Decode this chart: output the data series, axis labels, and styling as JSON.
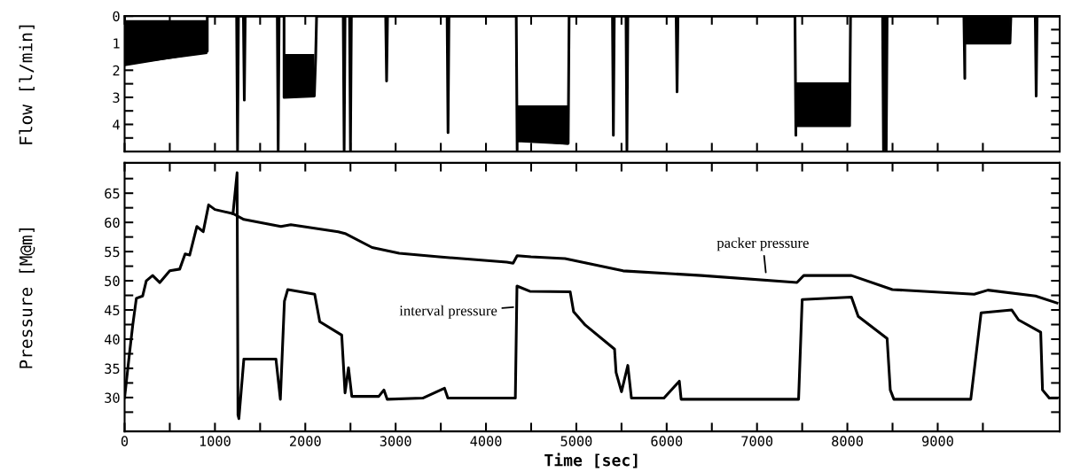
{
  "chart_data": [
    {
      "type": "line",
      "ylabel": "Flow [l/min]",
      "xlim": [
        0,
        10350
      ],
      "ylim": [
        5.0,
        0
      ],
      "tick_labels": "y",
      "xticks": [
        {
          "value": 0,
          "label": null
        },
        {
          "value": 500,
          "label": null
        },
        {
          "value": 1000,
          "label": null
        },
        {
          "value": 1500,
          "label": null
        },
        {
          "value": 2000,
          "label": null
        },
        {
          "value": 2500,
          "label": null
        },
        {
          "value": 3000,
          "label": null
        },
        {
          "value": 3500,
          "label": null
        },
        {
          "value": 4000,
          "label": null
        },
        {
          "value": 4500,
          "label": null
        },
        {
          "value": 5000,
          "label": null
        },
        {
          "value": 5500,
          "label": null
        },
        {
          "value": 6000,
          "label": null
        },
        {
          "value": 6500,
          "label": null
        },
        {
          "value": 7000,
          "label": null
        },
        {
          "value": 7500,
          "label": null
        },
        {
          "value": 8000,
          "label": null
        },
        {
          "value": 8500,
          "label": null
        },
        {
          "value": 9000,
          "label": null
        },
        {
          "value": 9500,
          "label": null
        }
      ],
      "yticks": [
        0,
        {
          "value": 0.5,
          "label": null
        },
        1,
        {
          "value": 1.5,
          "label": null
        },
        2,
        {
          "value": 2.5,
          "label": null
        },
        3,
        {
          "value": 3.5,
          "label": null
        },
        4,
        {
          "value": 4.5,
          "label": null
        }
      ],
      "grid": false,
      "legend": false,
      "marker": "none",
      "line_style": "solid",
      "series": [
        {
          "color": "#000000",
          "x": [
            0,
            0,
            915,
            915,
            1240,
            1250,
            1260,
            1315,
            1325,
            1335,
            1690,
            1700,
            1710,
            1765,
            1765,
            2100,
            2115,
            2125,
            2420,
            2430,
            2440,
            2490,
            2500,
            2510,
            2890,
            2900,
            2910,
            3570,
            3580,
            3590,
            4335,
            4345,
            4345,
            4910,
            4920,
            5400,
            5410,
            5420,
            5550,
            5560,
            5570,
            6105,
            6115,
            6125,
            7420,
            7430,
            7430,
            8025,
            8035,
            8390,
            8400,
            8410,
            8420,
            8430,
            8440,
            9290,
            9300,
            9300,
            9800,
            9810,
            10080,
            10090,
            10100,
            10350
          ],
          "values": [
            0,
            1.8,
            1.3,
            0,
            0,
            4.95,
            0,
            0,
            3.1,
            0,
            0,
            4.95,
            0,
            0,
            3.0,
            2.95,
            1.5,
            0,
            0,
            4.95,
            0,
            0,
            4.95,
            0,
            0,
            2.4,
            0,
            0,
            4.3,
            0,
            0,
            4.95,
            4.6,
            4.7,
            0,
            0,
            4.4,
            0,
            0,
            4.95,
            0,
            0,
            2.8,
            0,
            0,
            4.4,
            4.05,
            4.05,
            0,
            0,
            4.95,
            0,
            0,
            4.95,
            0,
            0,
            2.3,
            1.0,
            1.0,
            0,
            0,
            2.95,
            0,
            0
          ],
          "lower": [
            0.15,
            0.15,
            0.15,
            null,
            null,
            null,
            null,
            null,
            null,
            null,
            null,
            null,
            null,
            1.4,
            1.4,
            1.4,
            null,
            null,
            null,
            null,
            null,
            null,
            null,
            null,
            null,
            null,
            null,
            null,
            null,
            null,
            null,
            3.3,
            3.3,
            3.3,
            null,
            null,
            null,
            null,
            null,
            null,
            null,
            null,
            null,
            null,
            null,
            2.45,
            2.45,
            2.45,
            null,
            null,
            null,
            null,
            null,
            null,
            null,
            null,
            0,
            0,
            0,
            null,
            null,
            null,
            null,
            null
          ],
          "upper": [
            1.8,
            1.8,
            1.4,
            null,
            null,
            null,
            null,
            null,
            null,
            null,
            null,
            null,
            null,
            3.0,
            3.0,
            2.95,
            null,
            null,
            null,
            null,
            null,
            null,
            null,
            null,
            null,
            null,
            null,
            null,
            null,
            null,
            null,
            4.6,
            4.6,
            4.75,
            null,
            null,
            null,
            null,
            null,
            null,
            null,
            null,
            null,
            null,
            null,
            4.05,
            4.05,
            4.05,
            null,
            null,
            null,
            null,
            null,
            null,
            null,
            null,
            1.0,
            1.0,
            1.0,
            null,
            null,
            null,
            null,
            null
          ]
        }
      ]
    },
    {
      "type": "line",
      "xlabel": "Time [sec]",
      "ylabel": "Pressure [M@m]",
      "xlim": [
        0,
        10350
      ],
      "ylim": [
        24.2,
        70.2
      ],
      "xticks": [
        0,
        {
          "value": 500,
          "label": null
        },
        1000,
        {
          "value": 1500,
          "label": null
        },
        2000,
        {
          "value": 2500,
          "label": null
        },
        3000,
        {
          "value": 3500,
          "label": null
        },
        4000,
        {
          "value": 4500,
          "label": null
        },
        5000,
        {
          "value": 5500,
          "label": null
        },
        6000,
        {
          "value": 6500,
          "label": null
        },
        7000,
        {
          "value": 7500,
          "label": null
        },
        8000,
        {
          "value": 8500,
          "label": null
        },
        9000,
        {
          "value": 9500,
          "label": null
        }
      ],
      "yticks": [
        {
          "value": 27.5,
          "label": null
        },
        30,
        {
          "value": 32.5,
          "label": null
        },
        35,
        {
          "value": 37.5,
          "label": null
        },
        40,
        {
          "value": 42.5,
          "label": null
        },
        45,
        {
          "value": 47.5,
          "label": null
        },
        50,
        {
          "value": 52.5,
          "label": null
        },
        55,
        {
          "value": 57.5,
          "label": null
        },
        60,
        {
          "value": 62.5,
          "label": null
        },
        65,
        {
          "value": 67.5,
          "label": null
        }
      ],
      "grid": false,
      "legend": false,
      "marker": "none",
      "line_style": "solid",
      "annotations": [
        {
          "text": "packer pressure",
          "x": 7100,
          "y": 51.0
        },
        {
          "text": "interval pressure",
          "x": 4330,
          "y": 45.5
        }
      ],
      "series": [
        {
          "color": "#000000",
          "x": [
            0,
            50,
            90,
            130,
            200,
            240,
            310,
            390,
            500,
            610,
            670,
            720,
            800,
            870,
            930,
            1000,
            1200,
            1320,
            1730,
            1840,
            2365,
            2440,
            2740,
            3040,
            3480,
            4230,
            4300,
            4345,
            4498,
            4875,
            5517,
            6385,
            7442,
            7517,
            8045,
            8498,
            9404,
            9555,
            10083,
            10320
          ],
          "values": [
            30,
            37,
            42.4,
            47,
            47.4,
            50,
            50.9,
            49.7,
            51.7,
            52,
            54.6,
            54.4,
            59.3,
            58.4,
            63,
            62.2,
            61.5,
            60.5,
            59.3,
            59.6,
            58.4,
            58.1,
            55.7,
            54.7,
            54.1,
            53.2,
            53.0,
            54.3,
            54.1,
            53.8,
            51.7,
            50.9,
            49.7,
            50.9,
            50.9,
            48.5,
            47.7,
            48.4,
            47.4,
            46.2
          ]
        },
        {
          "color": "#000000",
          "x": [
            1200,
            1245,
            1255,
            1265,
            1320,
            1675,
            1724,
            1769,
            1806,
            2104,
            2160,
            2403,
            2440,
            2478,
            2515,
            2813,
            2870,
            2907,
            3300,
            3541,
            3578,
            4325,
            4343,
            4485,
            4932,
            4970,
            5100,
            5423,
            5440,
            5500,
            5570,
            5610,
            5970,
            6140,
            6160,
            7460,
            7500,
            8045,
            8120,
            8440,
            8475,
            8515,
            9366,
            9480,
            9820,
            9895,
            10140,
            10160,
            10235,
            10320
          ],
          "values": [
            61.5,
            68.5,
            27,
            26.4,
            36.6,
            36.6,
            29.7,
            46.5,
            48.5,
            47.7,
            43,
            40.7,
            30.8,
            35.1,
            30.2,
            30.2,
            31.3,
            29.7,
            29.9,
            31.6,
            29.9,
            29.9,
            49.1,
            48.2,
            48.1,
            44.7,
            42.4,
            38.3,
            34.3,
            31,
            35.5,
            29.9,
            29.9,
            32.8,
            29.7,
            29.7,
            46.8,
            47.2,
            43.9,
            40.1,
            31.3,
            29.7,
            29.7,
            44.5,
            45,
            43.3,
            41.2,
            31.3,
            29.9,
            29.9
          ]
        }
      ]
    }
  ]
}
